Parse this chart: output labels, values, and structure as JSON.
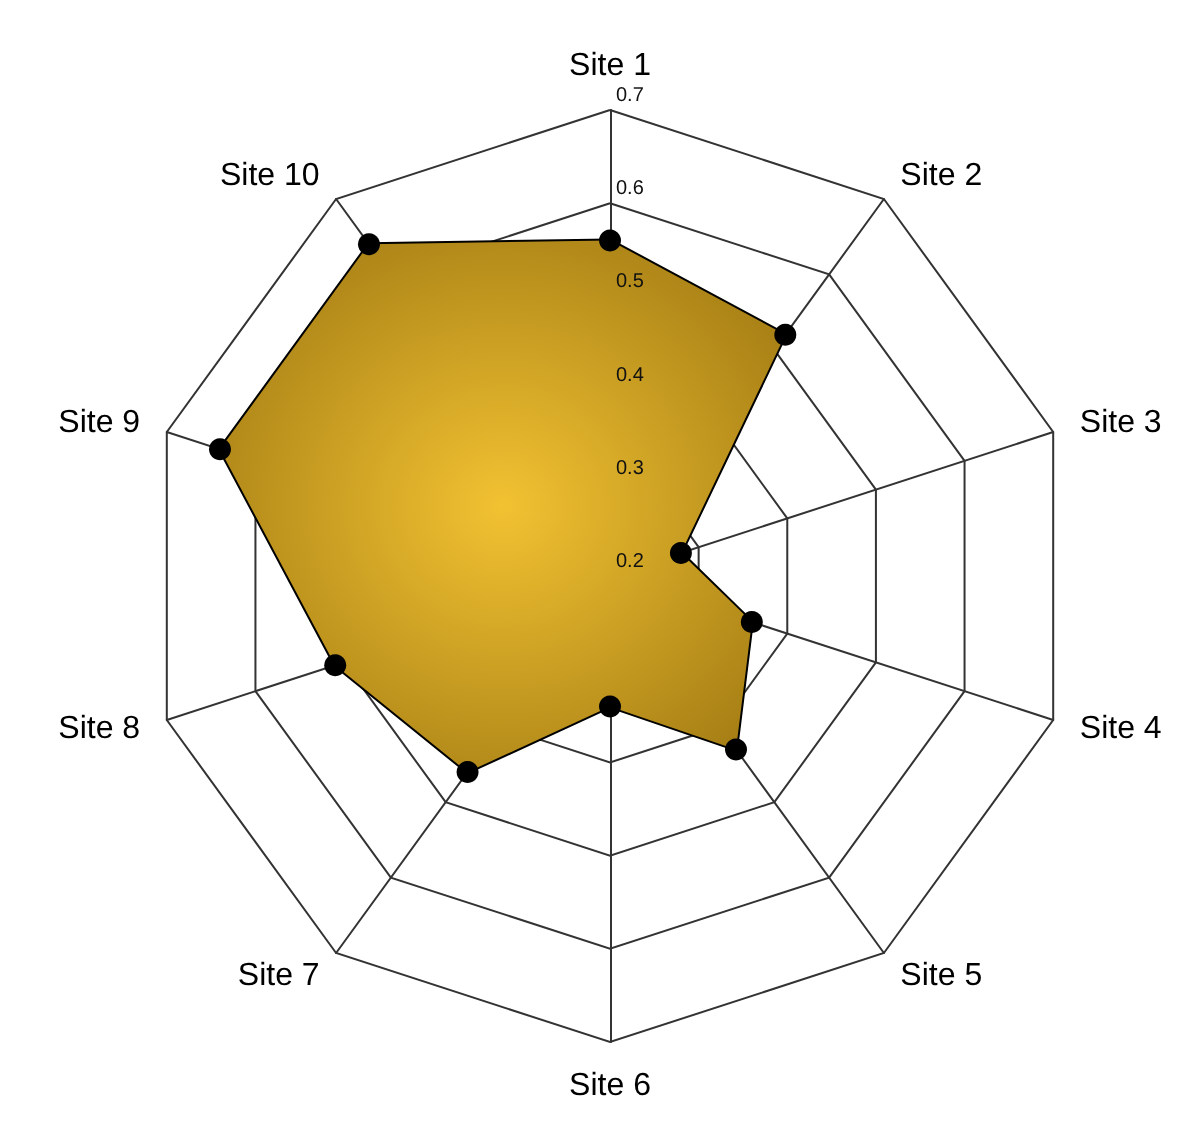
{
  "chart_data": {
    "type": "radar",
    "categories": [
      "Site 1",
      "Site 2",
      "Site 3",
      "Site 4",
      "Site 5",
      "Site 6",
      "Site 7",
      "Site 8",
      "Site 9",
      "Site 10"
    ],
    "series": [
      {
        "color": "#f2c232",
        "values": [
          0.56,
          0.52,
          0.28,
          0.36,
          0.43,
          0.34,
          0.46,
          0.51,
          0.64,
          0.64
        ]
      }
    ],
    "ylim": [
      0.2,
      0.7
    ],
    "yticks": [
      0.2,
      0.3,
      0.4,
      0.5,
      0.6,
      0.7
    ],
    "marker": "circle"
  }
}
